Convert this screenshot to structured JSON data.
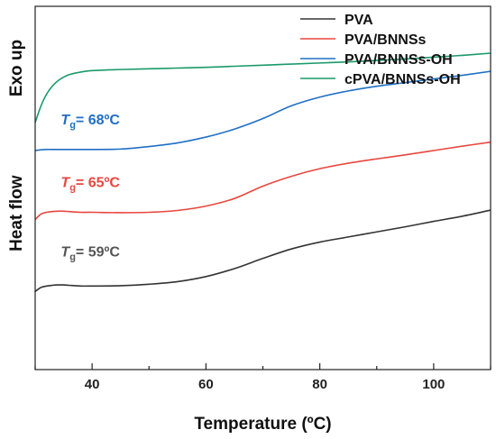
{
  "chart_data": {
    "type": "line",
    "title": "",
    "xlabel": "Temperature (ºC)",
    "ylabel": "Heat flow",
    "ylabel_extra": "Exo up",
    "xlim": [
      30,
      110
    ],
    "ylim": [
      0,
      100
    ],
    "x_ticks": [
      40,
      60,
      80,
      100
    ],
    "y_ticks_shown": false,
    "grid": false,
    "legend_position": "top-right",
    "series": [
      {
        "name": "PVA",
        "color": "#333333",
        "x": [
          30,
          31,
          32,
          33,
          34,
          35,
          36,
          38,
          40,
          45,
          50,
          55,
          60,
          65,
          70,
          75,
          80,
          85,
          90,
          95,
          100,
          105,
          110
        ],
        "y": [
          21.5,
          22.6,
          23.0,
          23.2,
          23.3,
          23.3,
          23.2,
          23.0,
          23.0,
          23.1,
          23.5,
          24.2,
          25.6,
          27.8,
          30.6,
          33.2,
          35.1,
          36.5,
          37.9,
          39.3,
          40.8,
          42.2,
          43.9
        ]
      },
      {
        "name": "PVA/BNNSs",
        "color": "#e8473e",
        "x": [
          30,
          31,
          32,
          33,
          34,
          35,
          36,
          38,
          40,
          45,
          50,
          55,
          60,
          65,
          70,
          75,
          80,
          85,
          90,
          95,
          100,
          105,
          110
        ],
        "y": [
          41.3,
          42.8,
          43.3,
          43.5,
          43.6,
          43.6,
          43.5,
          43.3,
          43.3,
          43.2,
          43.3,
          43.8,
          45.0,
          47.1,
          50.5,
          53.2,
          55.3,
          56.8,
          58.0,
          59.1,
          60.3,
          61.5,
          62.6
        ]
      },
      {
        "name": "PVA/BNNSs-OH",
        "color": "#1f6fc5",
        "x": [
          30,
          31,
          32,
          33,
          34,
          35,
          36,
          38,
          40,
          45,
          50,
          55,
          60,
          65,
          70,
          75,
          80,
          85,
          90,
          95,
          100,
          105,
          110
        ],
        "y": [
          60.3,
          60.5,
          60.6,
          60.6,
          60.6,
          60.6,
          60.6,
          60.6,
          60.6,
          60.7,
          61.4,
          62.4,
          64.0,
          66.2,
          69.1,
          72.6,
          75.0,
          76.7,
          78.0,
          79.0,
          80.0,
          81.0,
          82.1
        ]
      },
      {
        "name": "cPVA/BNNSs-OH",
        "color": "#1a9a6a",
        "x": [
          30,
          31,
          32,
          33,
          34,
          35,
          36,
          38,
          40,
          45,
          50,
          55,
          60,
          65,
          70,
          75,
          80,
          85,
          90,
          95,
          100,
          105,
          110
        ],
        "y": [
          68.0,
          72.5,
          75.8,
          78.0,
          79.5,
          80.5,
          81.2,
          81.9,
          82.3,
          82.6,
          82.8,
          83.0,
          83.2,
          83.5,
          83.8,
          84.1,
          84.4,
          84.7,
          85.1,
          85.5,
          86.0,
          86.5,
          87.1
        ]
      }
    ],
    "annotations": [
      {
        "symbol": "T",
        "subscript": "g",
        "text": "= 68ºC",
        "color": "#1f6fc5",
        "x": 34.5,
        "y": 67.5
      },
      {
        "symbol": "T",
        "subscript": "g",
        "text": "= 65ºC",
        "color": "#e8473e",
        "x": 34.5,
        "y": 50.2
      },
      {
        "symbol": "T",
        "subscript": "g",
        "text": "= 59ºC",
        "color": "#555555",
        "x": 34.5,
        "y": 31.2
      }
    ]
  }
}
